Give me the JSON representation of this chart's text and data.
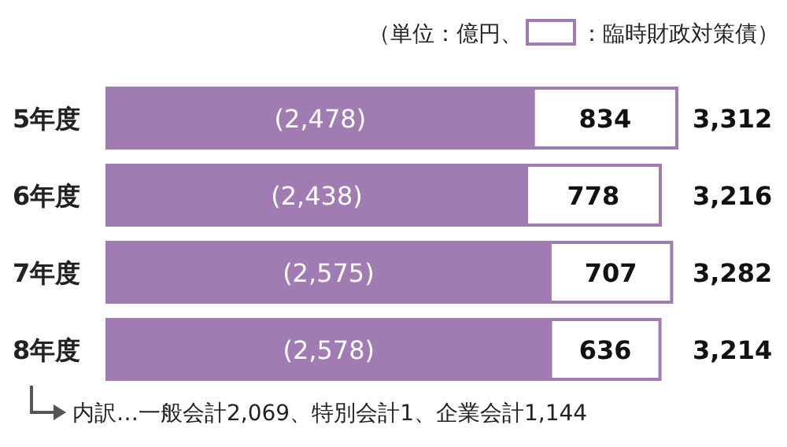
{
  "chart_data": {
    "type": "bar",
    "orientation": "horizontal",
    "stacked": true,
    "legend": "top right",
    "legend_title": "（単位：億円、",
    "categories": [
      "5年度",
      "6年度",
      "7年度",
      "8年度"
    ],
    "series": [
      {
        "color": "#a07cb2",
        "values": [
          2478,
          2438,
          2575,
          2578
        ],
        "value_labels": [
          "(2,478)",
          "(2,438)",
          "(2,575)",
          "(2,578)"
        ]
      },
      {
        "name": "：臨時財政対策債）",
        "color": "#ffffff",
        "values": [
          834,
          778,
          707,
          636
        ],
        "value_labels": [
          "834",
          "778",
          "707",
          "636"
        ]
      }
    ],
    "totals": [
      "3,312",
      "3,216",
      "3,282",
      "3,214"
    ],
    "annotations": [
      "内訳…一般会計2,069、特別会計1、企業会計1,144"
    ]
  }
}
